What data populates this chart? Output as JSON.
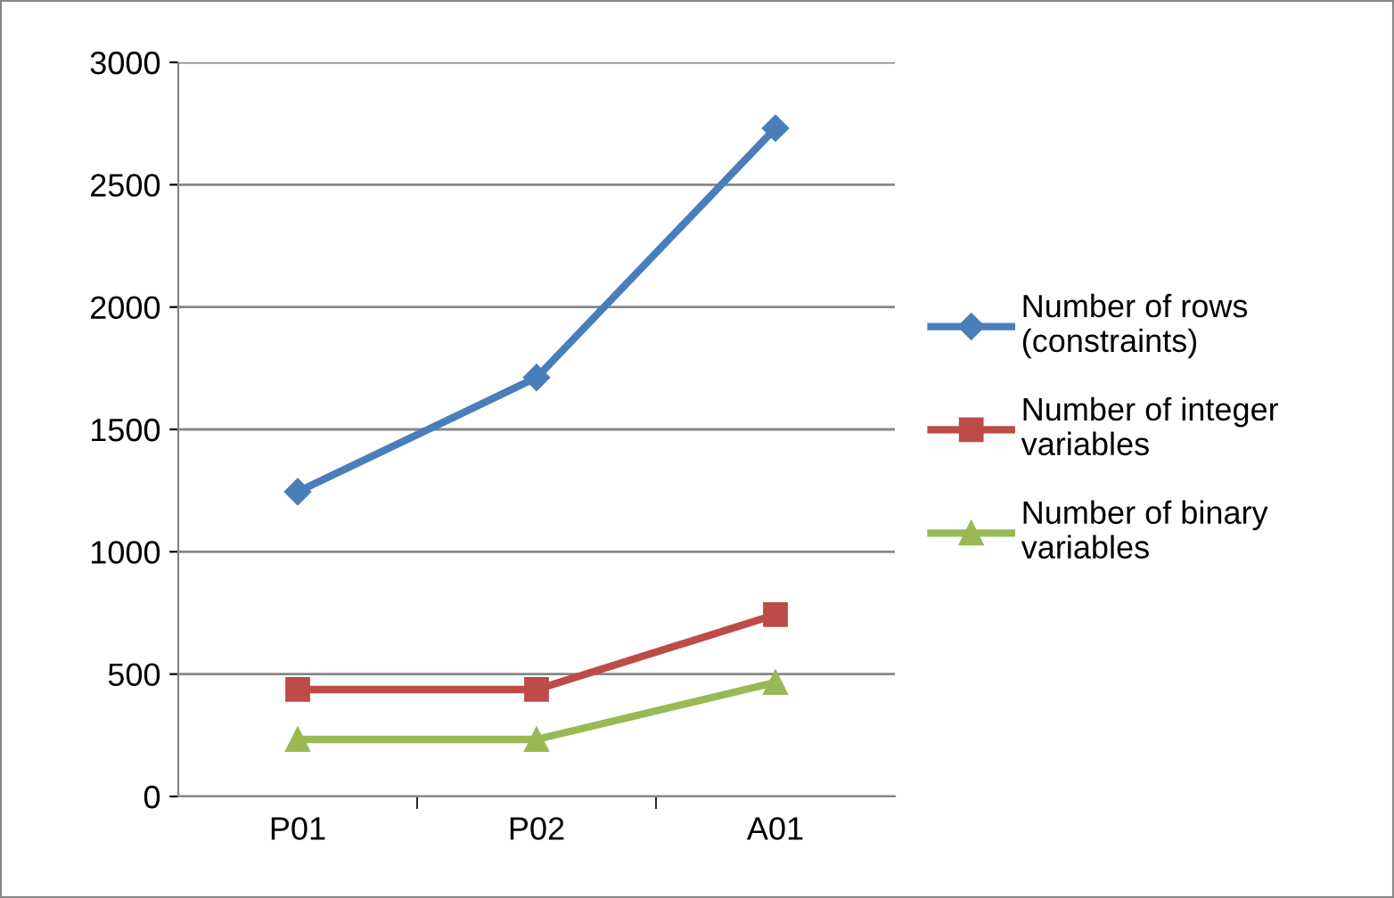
{
  "chart_data": {
    "type": "line",
    "categories": [
      "P01",
      "P02",
      "A01"
    ],
    "series": [
      {
        "name": "Number of rows\n(constraints)",
        "color": "#4a7ebb",
        "marker": "diamond",
        "values": [
          1245,
          1712,
          2731
        ]
      },
      {
        "name": "Number of integer\nvariables",
        "color": "#be4b48",
        "marker": "square",
        "values": [
          437,
          437,
          743
        ]
      },
      {
        "name": "Number of binary\nvariables",
        "color": "#98b954",
        "marker": "triangle",
        "values": [
          233,
          233,
          466
        ]
      }
    ],
    "ylim": [
      0,
      3000
    ],
    "yticks": [
      0,
      500,
      1000,
      1500,
      2000,
      2500,
      3000
    ],
    "grid": "y",
    "legend": "right",
    "line_style": "solid"
  }
}
